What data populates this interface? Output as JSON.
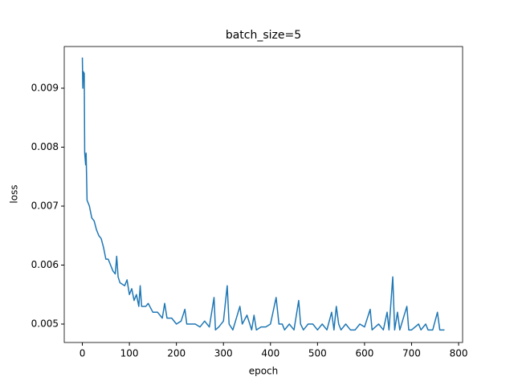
{
  "chart_data": {
    "type": "line",
    "title": "batch_size=5",
    "xlabel": "epoch",
    "ylabel": "loss",
    "x": [
      0,
      1,
      2,
      4,
      5,
      7,
      8,
      10,
      15,
      20,
      25,
      30,
      35,
      40,
      45,
      50,
      55,
      60,
      65,
      70,
      73,
      76,
      80,
      90,
      95,
      100,
      105,
      110,
      115,
      120,
      123,
      126,
      135,
      140,
      150,
      160,
      170,
      175,
      180,
      190,
      200,
      210,
      218,
      222,
      240,
      250,
      260,
      270,
      280,
      283,
      290,
      300,
      308,
      312,
      320,
      335,
      340,
      350,
      360,
      365,
      370,
      380,
      390,
      400,
      412,
      418,
      425,
      430,
      440,
      450,
      460,
      464,
      470,
      480,
      490,
      500,
      510,
      520,
      530,
      535,
      540,
      545,
      550,
      560,
      570,
      580,
      590,
      600,
      612,
      616,
      630,
      640,
      648,
      652,
      660,
      664,
      670,
      675,
      690,
      694,
      700,
      715,
      720,
      730,
      735,
      745,
      755,
      760,
      770
    ],
    "series": [
      {
        "name": "loss",
        "color": "#1f77b4",
        "values": [
          0.00952,
          0.009,
          0.00928,
          0.00925,
          0.0079,
          0.0077,
          0.0079,
          0.0071,
          0.007,
          0.0068,
          0.00675,
          0.0066,
          0.0065,
          0.00645,
          0.0063,
          0.0061,
          0.0061,
          0.006,
          0.0059,
          0.00585,
          0.00615,
          0.0058,
          0.0057,
          0.00565,
          0.00575,
          0.0055,
          0.0056,
          0.0054,
          0.0055,
          0.0053,
          0.00565,
          0.0053,
          0.0053,
          0.00535,
          0.0052,
          0.0052,
          0.0051,
          0.00535,
          0.0051,
          0.0051,
          0.005,
          0.00505,
          0.00525,
          0.005,
          0.005,
          0.00495,
          0.00505,
          0.00495,
          0.00545,
          0.0049,
          0.00495,
          0.00505,
          0.00565,
          0.005,
          0.0049,
          0.0053,
          0.005,
          0.00515,
          0.0049,
          0.00515,
          0.0049,
          0.00495,
          0.00495,
          0.005,
          0.00545,
          0.005,
          0.005,
          0.0049,
          0.005,
          0.0049,
          0.0054,
          0.005,
          0.0049,
          0.005,
          0.005,
          0.0049,
          0.005,
          0.0049,
          0.0052,
          0.0049,
          0.0053,
          0.005,
          0.0049,
          0.005,
          0.0049,
          0.0049,
          0.005,
          0.00495,
          0.00525,
          0.0049,
          0.005,
          0.0049,
          0.0052,
          0.0049,
          0.0058,
          0.0049,
          0.0052,
          0.0049,
          0.0053,
          0.0049,
          0.0049,
          0.005,
          0.0049,
          0.005,
          0.0049,
          0.0049,
          0.0052,
          0.0049,
          0.0049
        ]
      }
    ],
    "xlim": [
      -38.5,
      808.5
    ],
    "xticks": [
      0,
      100,
      200,
      300,
      400,
      500,
      600,
      700,
      800
    ],
    "ylim": [
      0.004687,
      0.009707
    ],
    "yticks": [
      0.005,
      0.006,
      0.007,
      0.008,
      0.009
    ],
    "grid": false
  }
}
